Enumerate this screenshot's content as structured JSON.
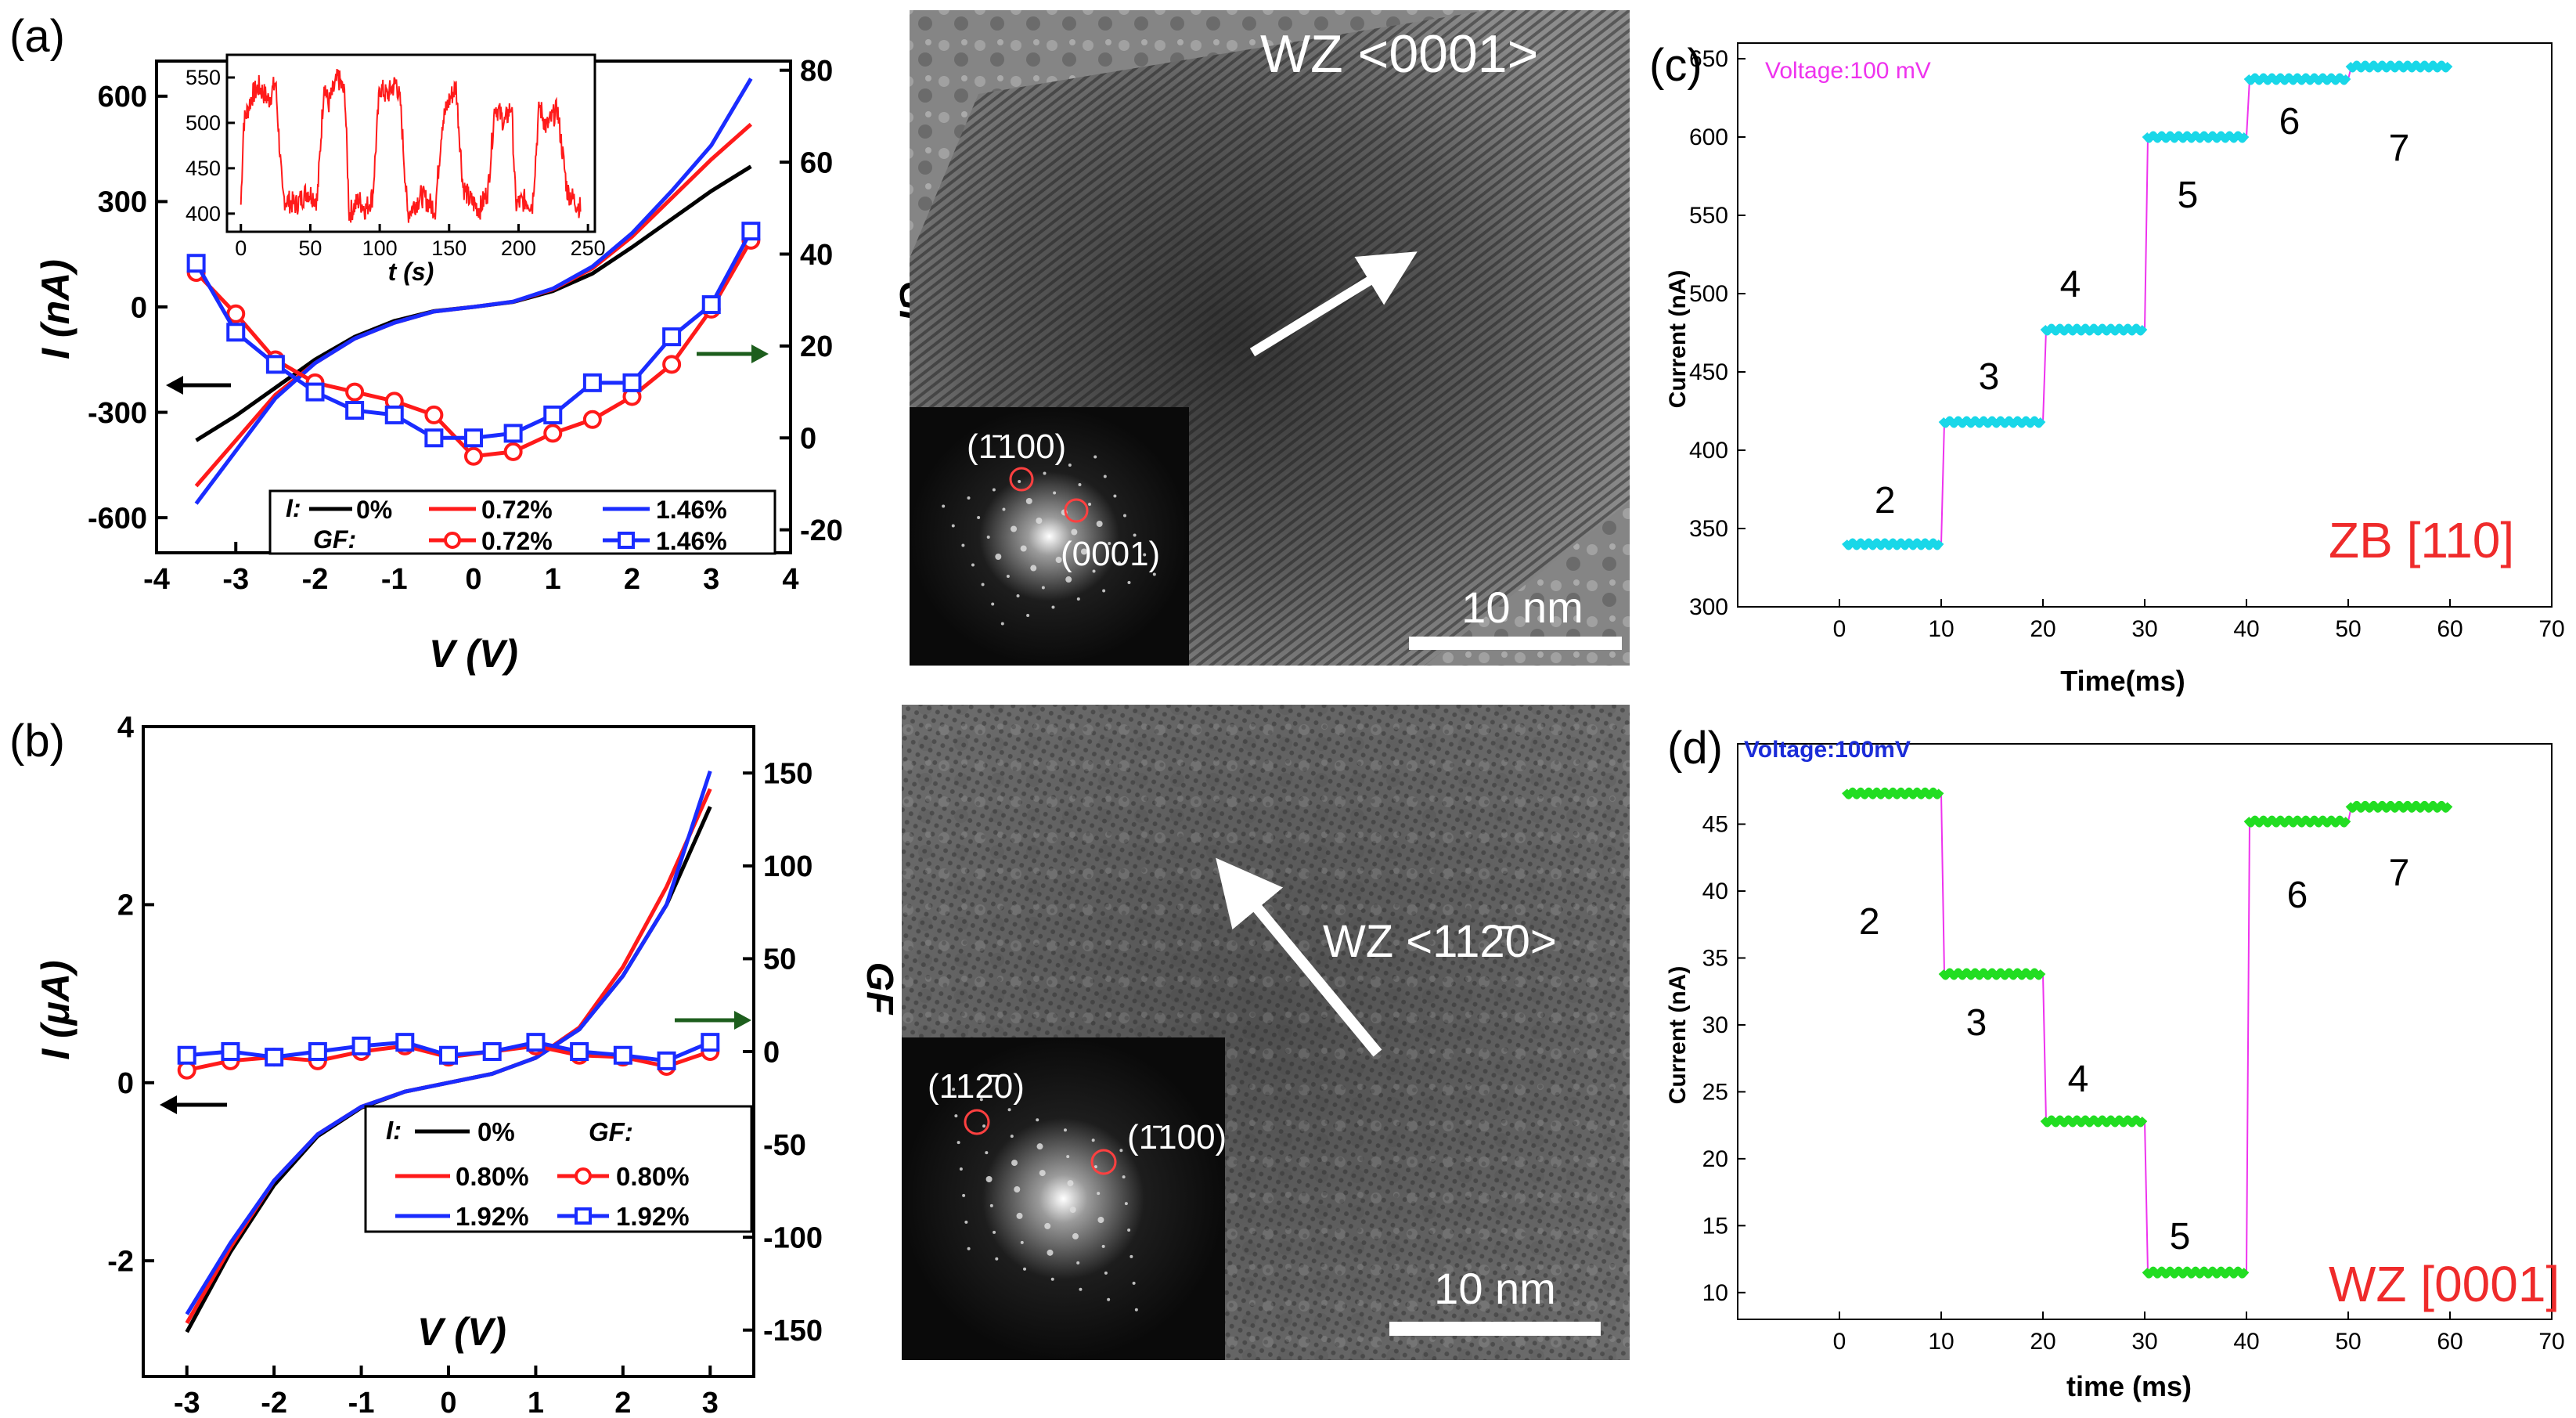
{
  "panel_labels": {
    "a": "(a)",
    "b": "(b)",
    "c": "(c)",
    "d": "(d)"
  },
  "tem": {
    "a": {
      "direction": "WZ <0001>",
      "fft_spot_1": "(1̄100)",
      "fft_spot_2": "(0001)",
      "scale": "10 nm"
    },
    "b": {
      "direction": "WZ <112̄0>",
      "fft_spot_1": "(112̄0)",
      "fft_spot_2": "(1̄100)",
      "scale": "10 nm"
    }
  },
  "legend_a": {
    "i_label": "I:",
    "gf_label": "GF:",
    "i0": "0%",
    "i1": "0.72%",
    "i2": "1.46%",
    "g1": "0.72%",
    "g2": "1.46%"
  },
  "legend_b": {
    "i_label": "I:",
    "gf_label": "GF:",
    "i0": "0%",
    "i1": "0.80%",
    "i2": "1.92%",
    "g1": "0.80%",
    "g2": "1.92%"
  },
  "colors": {
    "black": "#000000",
    "red": "#ff1a1a",
    "blue": "#1a2cff",
    "green": "#1d5e1d",
    "cyan": "#19d7e8",
    "lime": "#22dd22",
    "magenta": "#ee33ee",
    "zbred": "#ef2b2b"
  },
  "chart_data": [
    {
      "id": "a",
      "type": "line",
      "xlabel": "V (V)",
      "ylabel_left": "I (nA)",
      "ylabel_right": "GF",
      "xlim": [
        -4,
        4
      ],
      "ylim_left": [
        -700,
        700
      ],
      "ylim_right": [
        -25,
        82
      ],
      "xticks": [
        "-4",
        "-3",
        "-2",
        "-1",
        "0",
        "1",
        "2",
        "3",
        "4"
      ],
      "yticks_left": [
        "-600",
        "-300",
        "0",
        "300",
        "600"
      ],
      "yticks_right": [
        "-20",
        "0",
        "20",
        "40",
        "60",
        "80"
      ],
      "series": [
        {
          "name": "I 0%",
          "axis": "left",
          "color": "black",
          "x": [
            -3.5,
            -3,
            -2.5,
            -2,
            -1.5,
            -1,
            -0.5,
            0,
            0.5,
            1,
            1.5,
            2,
            2.5,
            3,
            3.5
          ],
          "y": [
            -380,
            -310,
            -230,
            -150,
            -85,
            -40,
            -12,
            0,
            14,
            45,
            95,
            170,
            250,
            330,
            400
          ]
        },
        {
          "name": "I 0.72%",
          "axis": "left",
          "color": "red",
          "x": [
            -3.5,
            -3,
            -2.5,
            -2,
            -1.5,
            -1,
            -0.5,
            0,
            0.5,
            1,
            1.5,
            2,
            2.5,
            3,
            3.5
          ],
          "y": [
            -510,
            -380,
            -250,
            -160,
            -90,
            -45,
            -13,
            0,
            15,
            50,
            110,
            200,
            310,
            420,
            520
          ]
        },
        {
          "name": "I 1.46%",
          "axis": "left",
          "color": "blue",
          "x": [
            -3.5,
            -3,
            -2.5,
            -2,
            -1.5,
            -1,
            -0.5,
            0,
            0.5,
            1,
            1.5,
            2,
            2.5,
            3,
            3.5
          ],
          "y": [
            -560,
            -410,
            -260,
            -160,
            -90,
            -45,
            -13,
            0,
            15,
            52,
            115,
            210,
            330,
            460,
            650
          ]
        },
        {
          "name": "GF 0.72%",
          "axis": "right",
          "color": "red",
          "marker": "circle",
          "x": [
            -3.5,
            -3,
            -2.5,
            -2,
            -1.5,
            -1,
            -0.5,
            0,
            0.5,
            1,
            1.5,
            2,
            2.5,
            3,
            3.5
          ],
          "y": [
            36,
            27,
            17,
            12,
            10,
            8,
            5,
            -4,
            -3,
            1,
            4,
            9,
            16,
            28,
            43
          ]
        },
        {
          "name": "GF 1.46%",
          "axis": "right",
          "color": "blue",
          "marker": "square",
          "x": [
            -3.5,
            -3,
            -2.5,
            -2,
            -1.5,
            -1,
            -0.5,
            0,
            0.5,
            1,
            1.5,
            2,
            2.5,
            3,
            3.5
          ],
          "y": [
            38,
            23,
            16,
            10,
            6,
            5,
            0,
            0,
            1,
            5,
            12,
            12,
            22,
            29,
            45
          ]
        }
      ],
      "inset": {
        "xlabel": "t (s)",
        "xlim": [
          -10,
          255
        ],
        "ylim": [
          380,
          575
        ],
        "xticks": [
          "0",
          "50",
          "100",
          "150",
          "200",
          "250"
        ],
        "yticks": [
          "400",
          "450",
          "500",
          "550"
        ],
        "series": [
          {
            "name": "current vs time",
            "color": "red",
            "x": [
              0,
              2,
              8,
              13,
              20,
              25,
              30,
              32,
              40,
              48,
              55,
              60,
              63,
              70,
              75,
              78,
              85,
              90,
              95,
              100,
              105,
              112,
              115,
              120,
              125,
              130,
              140,
              145,
              150,
              155,
              160,
              165,
              172,
              178,
              183,
              190,
              195,
              198,
              205,
              210,
              215,
              220,
              228,
              235,
              240,
              245
            ],
            "y": [
              410,
              500,
              530,
              540,
              525,
              545,
              420,
              415,
              410,
              425,
              415,
              545,
              520,
              550,
              530,
              400,
              415,
              405,
              420,
              540,
              530,
              545,
              520,
              400,
              410,
              420,
              405,
              500,
              525,
              540,
              430,
              415,
              405,
              425,
              520,
              500,
              520,
              410,
              415,
              410,
              520,
              495,
              515,
              425,
              415,
              405
            ]
          }
        ]
      }
    },
    {
      "id": "b",
      "type": "line",
      "xlabel": "V (V)",
      "ylabel_left": "I (μA)",
      "ylabel_right": "GF",
      "xlim": [
        -3.5,
        3.5
      ],
      "ylim_left": [
        -3.3,
        4
      ],
      "ylim_right": [
        -175,
        175
      ],
      "xticks": [
        "-3",
        "-2",
        "-1",
        "0",
        "1",
        "2",
        "3"
      ],
      "yticks_left": [
        "-2",
        "0",
        "2",
        "4"
      ],
      "yticks_right": [
        "-150",
        "-100",
        "-50",
        "0",
        "50",
        "100",
        "150"
      ],
      "series": [
        {
          "name": "I 0%",
          "axis": "left",
          "color": "black",
          "x": [
            -3,
            -2.5,
            -2,
            -1.5,
            -1,
            -0.5,
            0,
            0.5,
            1,
            1.5,
            2,
            2.5,
            3
          ],
          "y": [
            -2.8,
            -1.9,
            -1.15,
            -0.6,
            -0.28,
            -0.1,
            0,
            0.1,
            0.28,
            0.6,
            1.2,
            2.0,
            3.1
          ]
        },
        {
          "name": "I 0.80%",
          "axis": "left",
          "color": "red",
          "x": [
            -3,
            -2.5,
            -2,
            -1.5,
            -1,
            -0.5,
            0,
            0.5,
            1,
            1.5,
            2,
            2.5,
            3
          ],
          "y": [
            -2.7,
            -1.85,
            -1.1,
            -0.58,
            -0.27,
            -0.1,
            0,
            0.1,
            0.28,
            0.62,
            1.3,
            2.2,
            3.3
          ]
        },
        {
          "name": "I 1.92%",
          "axis": "left",
          "color": "blue",
          "x": [
            -3,
            -2.5,
            -2,
            -1.5,
            -1,
            -0.5,
            0,
            0.5,
            1,
            1.5,
            2,
            2.5,
            3
          ],
          "y": [
            -2.6,
            -1.8,
            -1.1,
            -0.58,
            -0.27,
            -0.1,
            0,
            0.1,
            0.28,
            0.6,
            1.2,
            2.0,
            3.5
          ]
        },
        {
          "name": "GF 0.80%",
          "axis": "right",
          "color": "red",
          "marker": "circle",
          "x": [
            -3,
            -2.5,
            -2,
            -1.5,
            -1,
            -0.5,
            0,
            0.5,
            1,
            1.5,
            2,
            2.5,
            3
          ],
          "y": [
            -10,
            -5,
            -3,
            -5,
            0,
            3,
            -3,
            0,
            3,
            -2,
            -3,
            -8,
            0
          ]
        },
        {
          "name": "GF 1.92%",
          "axis": "right",
          "color": "blue",
          "marker": "square",
          "x": [
            -3,
            -2.5,
            -2,
            -1.5,
            -1,
            -0.5,
            0,
            0.5,
            1,
            1.5,
            2,
            2.5,
            3
          ],
          "y": [
            -2,
            0,
            -3,
            0,
            3,
            5,
            -2,
            0,
            5,
            0,
            -2,
            -5,
            5
          ]
        }
      ]
    },
    {
      "id": "c",
      "type": "line",
      "title": "Voltage:100 mV",
      "annotation": "ZB [110]",
      "xlabel": "Time(ms)",
      "ylabel": "Current (nA)",
      "xlim": [
        -10,
        70
      ],
      "ylim": [
        300,
        660
      ],
      "xticks": [
        "0",
        "10",
        "20",
        "30",
        "40",
        "50",
        "60",
        "70"
      ],
      "yticks": [
        "300",
        "350",
        "400",
        "450",
        "500",
        "550",
        "600",
        "650"
      ],
      "steps": [
        {
          "label": "2",
          "t0": 0.5,
          "t1": 10,
          "value": 340
        },
        {
          "label": "3",
          "t0": 10,
          "t1": 20,
          "value": 418
        },
        {
          "label": "4",
          "t0": 20,
          "t1": 30,
          "value": 477
        },
        {
          "label": "5",
          "t0": 30,
          "t1": 40,
          "value": 600
        },
        {
          "label": "6",
          "t0": 40,
          "t1": 50,
          "value": 637
        },
        {
          "label": "7",
          "t0": 50,
          "t1": 60,
          "value": 645
        }
      ]
    },
    {
      "id": "d",
      "type": "line",
      "title": "Voltage:100mV",
      "annotation": "WZ [0001]",
      "xlabel": "time (ms)",
      "ylabel": "Current (nA)",
      "xlim": [
        -10,
        70
      ],
      "ylim": [
        8,
        51
      ],
      "xticks": [
        "0",
        "10",
        "20",
        "30",
        "40",
        "50",
        "60",
        "70"
      ],
      "yticks": [
        "10",
        "15",
        "20",
        "25",
        "30",
        "35",
        "40",
        "45"
      ],
      "steps": [
        {
          "label": "2",
          "t0": 0.5,
          "t1": 10,
          "value": 47.3
        },
        {
          "label": "3",
          "t0": 10,
          "t1": 20,
          "value": 33.8
        },
        {
          "label": "4",
          "t0": 20,
          "t1": 30,
          "value": 22.8
        },
        {
          "label": "5",
          "t0": 30,
          "t1": 40,
          "value": 11.5
        },
        {
          "label": "6",
          "t0": 40,
          "t1": 50,
          "value": 45.2
        },
        {
          "label": "7",
          "t0": 50,
          "t1": 60,
          "value": 46.3
        }
      ]
    }
  ]
}
